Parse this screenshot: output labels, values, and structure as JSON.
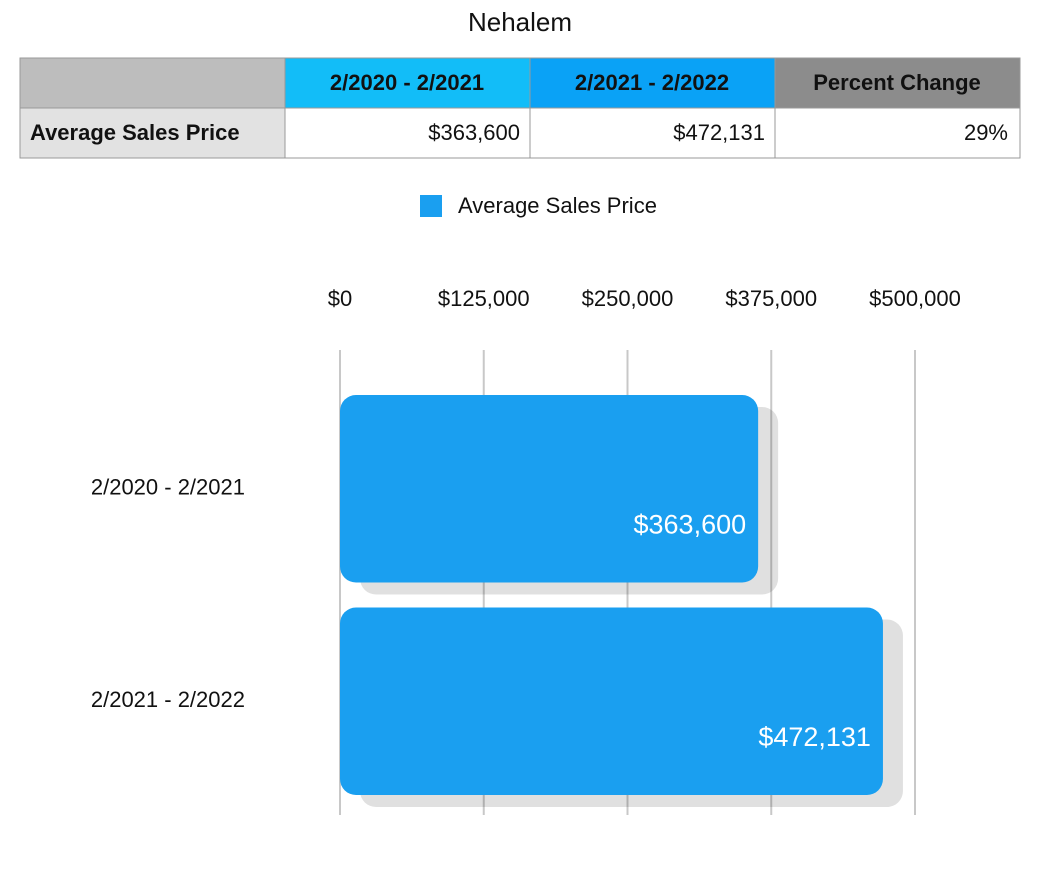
{
  "title": "Nehalem",
  "table": {
    "header": [
      "2/2020 - 2/2021",
      "2/2021 - 2/2022",
      "Percent Change"
    ],
    "rows": [
      [
        "Average Sales Price",
        "$363,600",
        "$472,131",
        "29%"
      ]
    ]
  },
  "chart_data": {
    "type": "bar",
    "orientation": "horizontal",
    "categories": [
      "2/2020 - 2/2021",
      "2/2021 - 2/2022"
    ],
    "series": [
      {
        "name": "Average Sales Price",
        "color": "#1a9ff0",
        "values": [
          363600,
          472131
        ],
        "value_labels": [
          "$363,600",
          "$472,131"
        ]
      }
    ],
    "xlim": [
      0,
      500000
    ],
    "xticks": [
      {
        "value": 0,
        "label": "$0"
      },
      {
        "value": 125000,
        "label": "$125,000"
      },
      {
        "value": 250000,
        "label": "$250,000"
      },
      {
        "value": 375000,
        "label": "$375,000"
      },
      {
        "value": 500000,
        "label": "$500,000"
      }
    ],
    "grid": true,
    "legend": "top"
  }
}
